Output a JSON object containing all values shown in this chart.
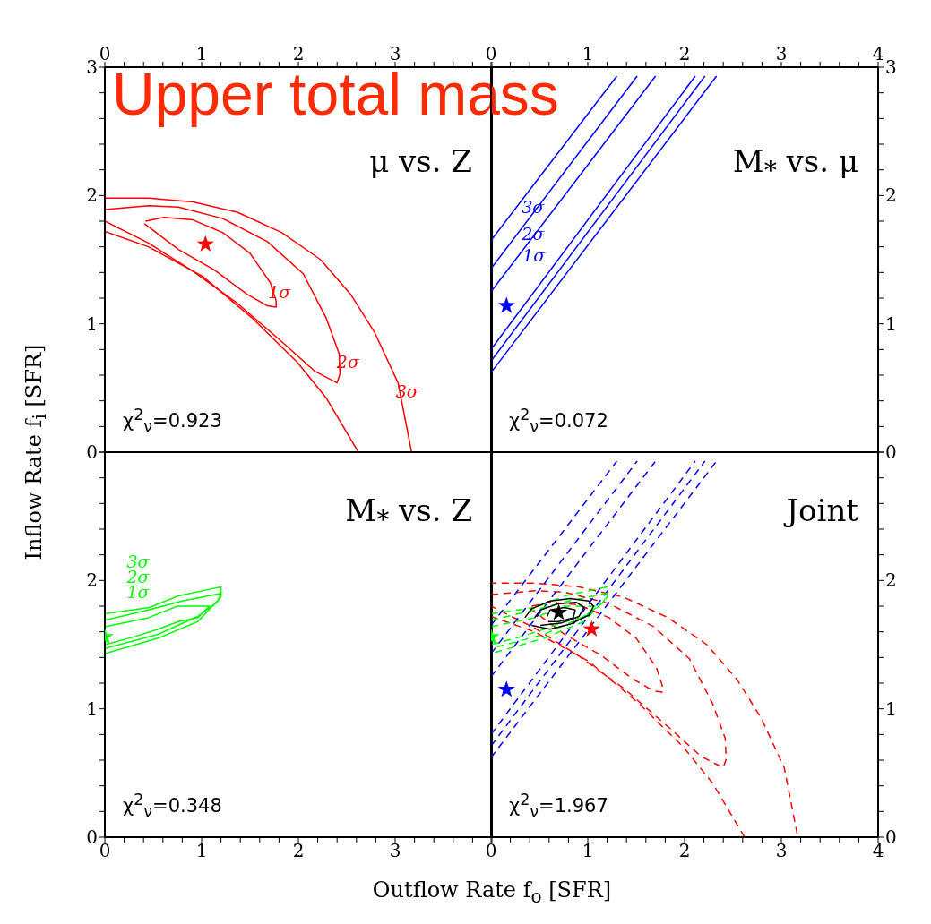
{
  "chart_data": [
    {
      "type": "line",
      "title": "Upper total mass",
      "subtitle": "μ vs. Z",
      "marker": "none",
      "xlim": [
        0,
        4
      ],
      "ylim": [
        0,
        3
      ],
      "xticks": [
        0,
        {
          "value": 0.2,
          "label": null
        },
        {
          "value": 0.4,
          "label": null
        },
        {
          "value": 0.6,
          "label": null
        },
        {
          "value": 0.8,
          "label": null
        },
        1,
        {
          "value": 1.2,
          "label": null
        },
        {
          "value": 1.4,
          "label": null
        },
        {
          "value": 1.6,
          "label": null
        },
        {
          "value": 1.8,
          "label": null
        },
        2,
        {
          "value": 2.2,
          "label": null
        },
        {
          "value": 2.4,
          "label": null
        },
        {
          "value": 2.6,
          "label": null
        },
        {
          "value": 2.8,
          "label": null
        },
        3,
        {
          "value": 3.2,
          "label": null
        },
        {
          "value": 3.4,
          "label": null
        },
        {
          "value": 3.6,
          "label": null
        },
        {
          "value": 3.8,
          "label": null
        },
        {
          "value": 4,
          "label": null
        }
      ],
      "yticks": [
        0,
        {
          "value": 0.2,
          "label": null
        },
        {
          "value": 0.4,
          "label": null
        },
        {
          "value": 0.6,
          "label": null
        },
        {
          "value": 0.8,
          "label": null
        },
        1,
        {
          "value": 1.2,
          "label": null
        },
        {
          "value": 1.4,
          "label": null
        },
        {
          "value": 1.6,
          "label": null
        },
        {
          "value": 1.8,
          "label": null
        },
        2,
        {
          "value": 2.2,
          "label": null
        },
        {
          "value": 2.4,
          "label": null
        },
        {
          "value": 2.6,
          "label": null
        },
        {
          "value": 2.8,
          "label": null
        },
        3
      ],
      "series": [
        {
          "color": "#ff0000",
          "x": [
            2.62,
            2.29,
            1.99,
            1.53,
            1.01,
            0.45,
            0,
            0,
            0.45,
            0.91,
            1.37,
            1.83,
            2.23,
            2.54,
            2.79,
            3.03,
            3.17
          ],
          "values": [
            0,
            0.42,
            0.7,
            1.04,
            1.37,
            1.6,
            1.72,
            1.98,
            1.98,
            1.95,
            1.87,
            1.71,
            1.5,
            1.23,
            0.93,
            0.54,
            0
          ]
        },
        {
          "color": "#ff0000",
          "x": [
            0,
            0.45,
            0.76,
            1.22,
            1.68,
            2.05,
            2.29,
            2.42,
            2.43,
            2.4,
            2.17,
            1.83,
            1.37,
            0.91,
            0.45,
            0
          ],
          "values": [
            1.89,
            1.92,
            1.91,
            1.82,
            1.64,
            1.39,
            1.04,
            0.77,
            0.61,
            0.54,
            0.63,
            0.86,
            1.16,
            1.41,
            1.63,
            1.8
          ]
        },
        {
          "color": "#ff0000",
          "x": [
            0.42,
            0.61,
            0.91,
            1.22,
            1.5,
            1.71,
            1.77,
            1.77,
            1.68,
            1.47,
            1.13,
            0.76,
            0.55,
            0.41
          ],
          "values": [
            1.8,
            1.83,
            1.81,
            1.71,
            1.55,
            1.32,
            1.18,
            1.13,
            1.14,
            1.23,
            1.42,
            1.58,
            1.7,
            1.78
          ]
        },
        {
          "type": "scatter",
          "marker": "star",
          "color": "#ff0000",
          "x": [
            1.04
          ],
          "values": [
            1.62
          ]
        }
      ],
      "annotations": [
        "χ$^{2}$$_{ν}$=0.923",
        {
          "text": "1σ",
          "x": 1.71,
          "y": 1.32
        },
        {
          "text": "2σ",
          "x": 2.42,
          "y": 0.77
        },
        {
          "text": "3σ",
          "x": 3.03,
          "y": 0.54
        }
      ]
    },
    {
      "type": "line",
      "subtitle": "M$_{*}$ vs. μ",
      "marker": "none",
      "xlim": [
        0,
        4
      ],
      "ylim": [
        0,
        3
      ],
      "xticks": [
        0,
        {
          "value": 0.2,
          "label": null
        },
        {
          "value": 0.4,
          "label": null
        },
        {
          "value": 0.6,
          "label": null
        },
        {
          "value": 0.8,
          "label": null
        },
        1,
        {
          "value": 1.2,
          "label": null
        },
        {
          "value": 1.4,
          "label": null
        },
        {
          "value": 1.6,
          "label": null
        },
        {
          "value": 1.8,
          "label": null
        },
        2,
        {
          "value": 2.2,
          "label": null
        },
        {
          "value": 2.4,
          "label": null
        },
        {
          "value": 2.6,
          "label": null
        },
        {
          "value": 2.8,
          "label": null
        },
        3,
        {
          "value": 3.2,
          "label": null
        },
        {
          "value": 3.4,
          "label": null
        },
        {
          "value": 3.6,
          "label": null
        },
        {
          "value": 3.8,
          "label": null
        },
        4
      ],
      "yticks": [
        0,
        {
          "value": 0.2,
          "label": null
        },
        {
          "value": 0.4,
          "label": null
        },
        {
          "value": 0.6,
          "label": null
        },
        {
          "value": 0.8,
          "label": null
        },
        1,
        {
          "value": 1.2,
          "label": null
        },
        {
          "value": 1.4,
          "label": null
        },
        {
          "value": 1.6,
          "label": null
        },
        {
          "value": 1.8,
          "label": null
        },
        2,
        {
          "value": 2.2,
          "label": null
        },
        {
          "value": 2.4,
          "label": null
        },
        {
          "value": 2.6,
          "label": null
        },
        {
          "value": 2.8,
          "label": null
        },
        3
      ],
      "series": [
        {
          "color": "#0000ff",
          "x": [
            0,
            1.3
          ],
          "values": [
            1.65,
            2.93
          ]
        },
        {
          "color": "#0000ff",
          "x": [
            0,
            1.51
          ],
          "values": [
            1.43,
            2.93
          ]
        },
        {
          "color": "#0000ff",
          "x": [
            0,
            1.7
          ],
          "values": [
            1.25,
            2.93
          ]
        },
        {
          "color": "#0000ff",
          "x": [
            0,
            2.11
          ],
          "values": [
            0.8,
            2.93
          ]
        },
        {
          "color": "#0000ff",
          "x": [
            0,
            2.21
          ],
          "values": [
            0.71,
            2.93
          ]
        },
        {
          "color": "#0000ff",
          "x": [
            0,
            2.33
          ],
          "values": [
            0.62,
            2.93
          ]
        },
        {
          "type": "scatter",
          "marker": "star",
          "color": "#0000ff",
          "x": [
            0.16
          ],
          "values": [
            1.14
          ]
        }
      ],
      "annotations": [
        "χ$^{2}$$_{ν}$=0.072",
        {
          "text": "3σ",
          "x": 0.34,
          "y": 1.98
        },
        {
          "text": "2σ",
          "x": 0.34,
          "y": 1.77
        },
        {
          "text": "1σ",
          "x": 0.35,
          "y": 1.6
        }
      ]
    },
    {
      "type": "line",
      "subtitle": "M$_{*}$ vs. Z",
      "xlabel": "Outflow Rate f$_{o}$ [SFR]",
      "ylabel": "Inflow Rate f$_{i}$ [SFR]",
      "marker": "none",
      "xlim": [
        0,
        4
      ],
      "ylim": [
        0,
        3
      ],
      "xticks": [
        0,
        {
          "value": 0.2,
          "label": null
        },
        {
          "value": 0.4,
          "label": null
        },
        {
          "value": 0.6,
          "label": null
        },
        {
          "value": 0.8,
          "label": null
        },
        1,
        {
          "value": 1.2,
          "label": null
        },
        {
          "value": 1.4,
          "label": null
        },
        {
          "value": 1.6,
          "label": null
        },
        {
          "value": 1.8,
          "label": null
        },
        2,
        {
          "value": 2.2,
          "label": null
        },
        {
          "value": 2.4,
          "label": null
        },
        {
          "value": 2.6,
          "label": null
        },
        {
          "value": 2.8,
          "label": null
        },
        3,
        {
          "value": 3.2,
          "label": null
        },
        {
          "value": 3.4,
          "label": null
        },
        {
          "value": 3.6,
          "label": null
        },
        {
          "value": 3.8,
          "label": null
        },
        {
          "value": 4,
          "label": null
        }
      ],
      "yticks": [
        0,
        {
          "value": 0.2,
          "label": null
        },
        {
          "value": 0.4,
          "label": null
        },
        {
          "value": 0.6,
          "label": null
        },
        {
          "value": 0.8,
          "label": null
        },
        1,
        {
          "value": 1.2,
          "label": null
        },
        {
          "value": 1.4,
          "label": null
        },
        {
          "value": 1.6,
          "label": null
        },
        {
          "value": 1.8,
          "label": null
        },
        2,
        {
          "value": 2.2,
          "label": null
        },
        {
          "value": 2.4,
          "label": null
        },
        {
          "value": 2.6,
          "label": null
        },
        {
          "value": 2.8,
          "label": null
        },
        {
          "value": 3,
          "label": null
        }
      ],
      "series": [
        {
          "color": "#00ff00",
          "x": [
            0,
            0.46,
            0.76,
            1.07,
            1.2,
            1.2,
            0.96,
            0.55,
            0
          ],
          "values": [
            1.74,
            1.79,
            1.88,
            1.93,
            1.95,
            1.87,
            1.68,
            1.55,
            1.43
          ]
        },
        {
          "color": "#00ff00",
          "x": [
            0,
            0.45,
            0.8,
            1.2,
            1.16,
            0.96,
            0.55,
            0
          ],
          "values": [
            1.69,
            1.77,
            1.84,
            1.9,
            1.83,
            1.72,
            1.58,
            1.47
          ]
        },
        {
          "color": "#00ff00",
          "x": [
            0,
            0.45,
            0.75,
            0.93,
            1.08,
            0.96,
            0.76,
            0.55,
            0.3,
            0
          ],
          "values": [
            1.64,
            1.71,
            1.8,
            1.8,
            1.8,
            1.71,
            1.68,
            1.62,
            1.56,
            1.5
          ]
        },
        {
          "type": "scatter",
          "marker": "star",
          "color": "#00ff00",
          "x": [
            0
          ],
          "values": [
            1.56
          ]
        }
      ],
      "annotations": [
        "χ$^{2}$$_{ν}$=0.348",
        {
          "text": "3σ",
          "x": 0.25,
          "y": 1.767
        },
        {
          "text": "2σ",
          "x": 0.25,
          "y": 1.734
        },
        {
          "text": "1σ",
          "x": 0.25,
          "y": 1.679
        }
      ]
    },
    {
      "type": "line",
      "subtitle": "Joint",
      "marker": "none",
      "xlim": [
        0,
        4
      ],
      "ylim": [
        0,
        3
      ],
      "xticks": [
        0,
        {
          "value": 0.2,
          "label": null
        },
        {
          "value": 0.4,
          "label": null
        },
        {
          "value": 0.6,
          "label": null
        },
        {
          "value": 0.8,
          "label": null
        },
        1,
        {
          "value": 1.2,
          "label": null
        },
        {
          "value": 1.4,
          "label": null
        },
        {
          "value": 1.6,
          "label": null
        },
        {
          "value": 1.8,
          "label": null
        },
        2,
        {
          "value": 2.2,
          "label": null
        },
        {
          "value": 2.4,
          "label": null
        },
        {
          "value": 2.6,
          "label": null
        },
        {
          "value": 2.8,
          "label": null
        },
        3,
        {
          "value": 3.2,
          "label": null
        },
        {
          "value": 3.4,
          "label": null
        },
        {
          "value": 3.6,
          "label": null
        },
        {
          "value": 3.8,
          "label": null
        },
        4
      ],
      "yticks": [
        0,
        {
          "value": 0.2,
          "label": null
        },
        {
          "value": 0.4,
          "label": null
        },
        {
          "value": 0.6,
          "label": null
        },
        {
          "value": 0.8,
          "label": null
        },
        1,
        {
          "value": 1.2,
          "label": null
        },
        {
          "value": 1.4,
          "label": null
        },
        {
          "value": 1.6,
          "label": null
        },
        {
          "value": 1.8,
          "label": null
        },
        2,
        {
          "value": 2.2,
          "label": null
        },
        {
          "value": 2.4,
          "label": null
        },
        {
          "value": 2.6,
          "label": null
        },
        {
          "value": 2.8,
          "label": null
        },
        {
          "value": 3,
          "label": null
        }
      ],
      "series": [
        {
          "color": "#ff0000",
          "line_style": "dashed",
          "x": [
            2.62,
            2.29,
            1.99,
            1.53,
            1.01,
            0.45,
            0,
            0,
            0.45,
            0.91,
            1.37,
            1.83,
            2.23,
            2.54,
            2.79,
            3.03,
            3.17
          ],
          "values": [
            0,
            0.42,
            0.7,
            1.04,
            1.37,
            1.6,
            1.72,
            1.98,
            1.98,
            1.95,
            1.87,
            1.71,
            1.5,
            1.23,
            0.93,
            0.54,
            0
          ]
        },
        {
          "color": "#ff0000",
          "line_style": "dashed",
          "x": [
            0,
            0.45,
            0.76,
            1.22,
            1.68,
            2.05,
            2.29,
            2.42,
            2.43,
            2.4,
            2.17,
            1.83,
            1.37,
            0.91,
            0.45,
            0
          ],
          "values": [
            1.89,
            1.92,
            1.91,
            1.82,
            1.64,
            1.39,
            1.04,
            0.77,
            0.61,
            0.54,
            0.63,
            0.86,
            1.16,
            1.41,
            1.63,
            1.8
          ]
        },
        {
          "color": "#ff0000",
          "line_style": "dashed",
          "x": [
            0.42,
            0.61,
            0.91,
            1.22,
            1.5,
            1.71,
            1.77,
            1.77,
            1.68,
            1.47,
            1.13,
            0.76,
            0.55,
            0.41
          ],
          "values": [
            1.8,
            1.83,
            1.81,
            1.71,
            1.55,
            1.32,
            1.18,
            1.13,
            1.14,
            1.23,
            1.42,
            1.58,
            1.7,
            1.78
          ]
        },
        {
          "color": "#0000ff",
          "line_style": "dashed",
          "x": [
            0,
            1.3
          ],
          "values": [
            1.65,
            2.93
          ]
        },
        {
          "color": "#0000ff",
          "line_style": "dashed",
          "x": [
            0,
            1.51
          ],
          "values": [
            1.43,
            2.93
          ]
        },
        {
          "color": "#0000ff",
          "line_style": "dashed",
          "x": [
            0,
            1.7
          ],
          "values": [
            1.25,
            2.93
          ]
        },
        {
          "color": "#0000ff",
          "line_style": "dashed",
          "x": [
            0,
            2.11
          ],
          "values": [
            0.8,
            2.93
          ]
        },
        {
          "color": "#0000ff",
          "line_style": "dashed",
          "x": [
            0,
            2.21
          ],
          "values": [
            0.71,
            2.93
          ]
        },
        {
          "color": "#0000ff",
          "line_style": "dashed",
          "x": [
            0,
            2.33
          ],
          "values": [
            0.62,
            2.93
          ]
        },
        {
          "color": "#00ff00",
          "line_style": "dashed",
          "x": [
            0,
            0.46,
            0.76,
            1.07,
            1.2,
            1.2,
            0.96,
            0.55,
            0
          ],
          "values": [
            1.74,
            1.79,
            1.88,
            1.93,
            1.95,
            1.87,
            1.68,
            1.55,
            1.43
          ]
        },
        {
          "color": "#00ff00",
          "line_style": "dashed",
          "x": [
            0,
            0.45,
            0.8,
            1.2,
            1.16,
            0.96,
            0.55,
            0
          ],
          "values": [
            1.69,
            1.77,
            1.84,
            1.9,
            1.83,
            1.72,
            1.58,
            1.47
          ]
        },
        {
          "color": "#00ff00",
          "line_style": "dashed",
          "x": [
            0,
            0.45,
            0.75,
            0.93,
            1.08,
            0.96,
            0.76,
            0.55,
            0.3,
            0
          ],
          "values": [
            1.64,
            1.71,
            1.8,
            1.8,
            1.8,
            1.71,
            1.68,
            1.62,
            1.56,
            1.5
          ]
        },
        {
          "color": "#000000",
          "x": [
            0.35,
            0.42,
            0.61,
            0.82,
            1.01,
            1.06,
            1.01,
            0.82,
            0.61,
            0.42
          ],
          "values": [
            1.71,
            1.78,
            1.84,
            1.86,
            1.84,
            1.8,
            1.73,
            1.66,
            1.62,
            1.65
          ]
        },
        {
          "color": "#000000",
          "x": [
            0.45,
            0.51,
            0.7,
            0.88,
            0.96,
            0.91,
            0.73,
            0.51
          ],
          "values": [
            1.71,
            1.77,
            1.82,
            1.83,
            1.79,
            1.72,
            1.67,
            1.65
          ]
        },
        {
          "color": "#000000",
          "x": [
            0.58,
            0.61,
            0.76,
            0.87,
            0.85,
            0.7,
            0.59
          ],
          "values": [
            1.72,
            1.77,
            1.79,
            1.77,
            1.71,
            1.68,
            1.68
          ]
        },
        {
          "type": "scatter",
          "marker": "star",
          "color": "#00ff00",
          "x": [
            0
          ],
          "values": [
            1.56
          ]
        },
        {
          "type": "scatter",
          "marker": "star",
          "color": "#0000ff",
          "x": [
            0.16
          ],
          "values": [
            1.15
          ]
        },
        {
          "type": "scatter",
          "marker": "star",
          "color": "#ff0000",
          "x": [
            1.04
          ],
          "values": [
            1.62
          ]
        },
        {
          "type": "scatter",
          "marker": "star",
          "color": "#000000",
          "x": [
            0.7
          ],
          "values": [
            1.75
          ]
        }
      ],
      "annotations": [
        "χ$^{2}$$_{ν}$=1.967"
      ]
    }
  ]
}
